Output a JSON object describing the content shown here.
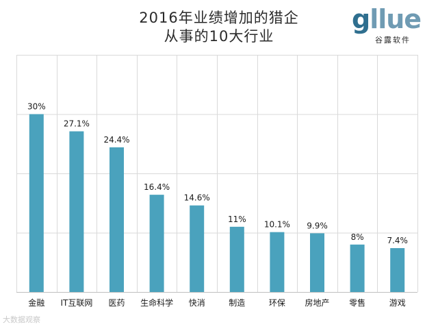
{
  "title": {
    "line1": "2016年业绩增加的猎企",
    "line2": "从事的10大行业"
  },
  "logo": {
    "brand": "gllue",
    "brand_g": "g",
    "brand_rest": "llue",
    "sub": "谷露软件"
  },
  "watermark": "大数据观察",
  "colors": {
    "bar": "#4aa2bd",
    "grid": "#d9d9d9",
    "axis": "#bfbfbf",
    "text": "#1a1a1a"
  },
  "chart_data": {
    "type": "bar",
    "title": "2016年业绩增加的猎企从事的10大行业",
    "categories": [
      "金融",
      "IT互联网",
      "医药",
      "生命科学",
      "快消",
      "制造",
      "环保",
      "房地产",
      "零售",
      "游戏"
    ],
    "values": [
      30,
      27.1,
      24.4,
      16.4,
      14.6,
      11,
      10.1,
      9.9,
      8,
      7.4
    ],
    "data_labels": [
      "30%",
      "27.1%",
      "24.4%",
      "16.4%",
      "14.6%",
      "11%",
      "10.1%",
      "9.9%",
      "8%",
      "7.4%"
    ],
    "ylim": [
      0,
      40
    ],
    "yticks": [
      0,
      10,
      20,
      30,
      40
    ],
    "xlabel": "",
    "ylabel": "",
    "grid": true,
    "legend": "none"
  }
}
